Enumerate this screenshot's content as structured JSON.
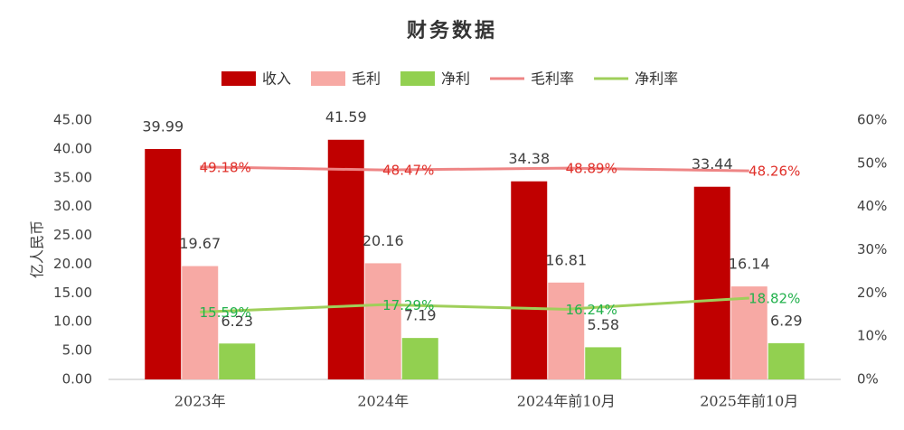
{
  "chart_data": {
    "type": "bar-line",
    "title": "财务数据",
    "y_axis_label": "亿人民币",
    "categories": [
      "2023年",
      "2024年",
      "2024年前10月",
      "2025年前10月"
    ],
    "series": [
      {
        "name": "收入",
        "type": "bar",
        "color": "#c00000",
        "values": [
          39.99,
          41.59,
          34.38,
          33.44
        ]
      },
      {
        "name": "毛利",
        "type": "bar",
        "color": "#f7a9a4",
        "values": [
          19.67,
          20.16,
          16.81,
          16.14
        ]
      },
      {
        "name": "净利",
        "type": "bar",
        "color": "#92d050",
        "values": [
          6.23,
          7.19,
          5.58,
          6.29
        ]
      },
      {
        "name": "毛利率",
        "type": "line",
        "axis": "y2",
        "color": "#ee8585",
        "label_color": "#e0302a",
        "values": [
          49.18,
          48.47,
          48.89,
          48.26
        ],
        "value_labels": [
          "49.18%",
          "48.47%",
          "48.89%",
          "48.26%"
        ]
      },
      {
        "name": "净利率",
        "type": "line",
        "axis": "y2",
        "color": "#9fcf5a",
        "label_color": "#22b14c",
        "values": [
          15.59,
          17.29,
          16.24,
          18.82
        ],
        "value_labels": [
          "15.59%",
          "17.29%",
          "16.24%",
          "18.82%"
        ]
      }
    ],
    "ylim": [
      0,
      45
    ],
    "yticks": [
      {
        "value": 0,
        "label": "0.00"
      },
      {
        "value": 5,
        "label": "5.00"
      },
      {
        "value": 10,
        "label": "10.00"
      },
      {
        "value": 15,
        "label": "15.00"
      },
      {
        "value": 20,
        "label": "20.00"
      },
      {
        "value": 25,
        "label": "25.00"
      },
      {
        "value": 30,
        "label": "30.00"
      },
      {
        "value": 35,
        "label": "35.00"
      },
      {
        "value": 40,
        "label": "40.00"
      },
      {
        "value": 45,
        "label": "45.00"
      }
    ],
    "y2lim": [
      0,
      60
    ],
    "y2ticks": [
      {
        "value": 0,
        "label": "0%"
      },
      {
        "value": 10,
        "label": "10%"
      },
      {
        "value": 20,
        "label": "20%"
      },
      {
        "value": 30,
        "label": "30%"
      },
      {
        "value": 40,
        "label": "40%"
      },
      {
        "value": 50,
        "label": "50%"
      },
      {
        "value": 60,
        "label": "60%"
      }
    ],
    "grid": false
  }
}
